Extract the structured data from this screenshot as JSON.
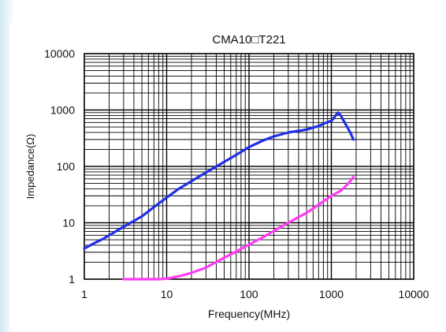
{
  "chart_data": {
    "type": "line",
    "title": "CMA10□T221",
    "xlabel": "Frequency(MHz)",
    "ylabel": "Impedance(Ω)",
    "xscale": "log",
    "yscale": "log",
    "xlim": [
      1,
      10000
    ],
    "ylim": [
      1,
      10000
    ],
    "grid": true,
    "x_ticks": [
      "1",
      "10",
      "100",
      "1000",
      "10000"
    ],
    "y_ticks": [
      "1",
      "10",
      "100",
      "1000",
      "10000"
    ],
    "series": [
      {
        "color": "#1f2fe6",
        "points": [
          [
            1,
            3.5
          ],
          [
            1.3,
            4.3
          ],
          [
            1.7,
            5.2
          ],
          [
            2,
            6
          ],
          [
            3,
            8.5
          ],
          [
            5,
            13
          ],
          [
            7,
            19
          ],
          [
            10,
            28
          ],
          [
            14,
            40
          ],
          [
            20,
            55
          ],
          [
            30,
            78
          ],
          [
            50,
            120
          ],
          [
            70,
            160
          ],
          [
            100,
            220
          ],
          [
            150,
            290
          ],
          [
            200,
            340
          ],
          [
            300,
            400
          ],
          [
            500,
            450
          ],
          [
            700,
            520
          ],
          [
            900,
            610
          ],
          [
            1000,
            640
          ],
          [
            1100,
            760
          ],
          [
            1200,
            900
          ],
          [
            1300,
            800
          ],
          [
            1500,
            550
          ],
          [
            1700,
            400
          ],
          [
            1850,
            300
          ]
        ]
      },
      {
        "color": "#ff3df5",
        "points": [
          [
            3,
            1
          ],
          [
            5,
            1
          ],
          [
            8,
            1
          ],
          [
            10,
            1.02
          ],
          [
            15,
            1.15
          ],
          [
            20,
            1.3
          ],
          [
            30,
            1.6
          ],
          [
            50,
            2.4
          ],
          [
            70,
            3.1
          ],
          [
            100,
            4.1
          ],
          [
            150,
            5.6
          ],
          [
            200,
            7.2
          ],
          [
            300,
            10
          ],
          [
            500,
            15
          ],
          [
            700,
            21
          ],
          [
            1000,
            30
          ],
          [
            1300,
            37
          ],
          [
            1500,
            45
          ],
          [
            1700,
            55
          ],
          [
            1850,
            65
          ]
        ]
      }
    ]
  }
}
